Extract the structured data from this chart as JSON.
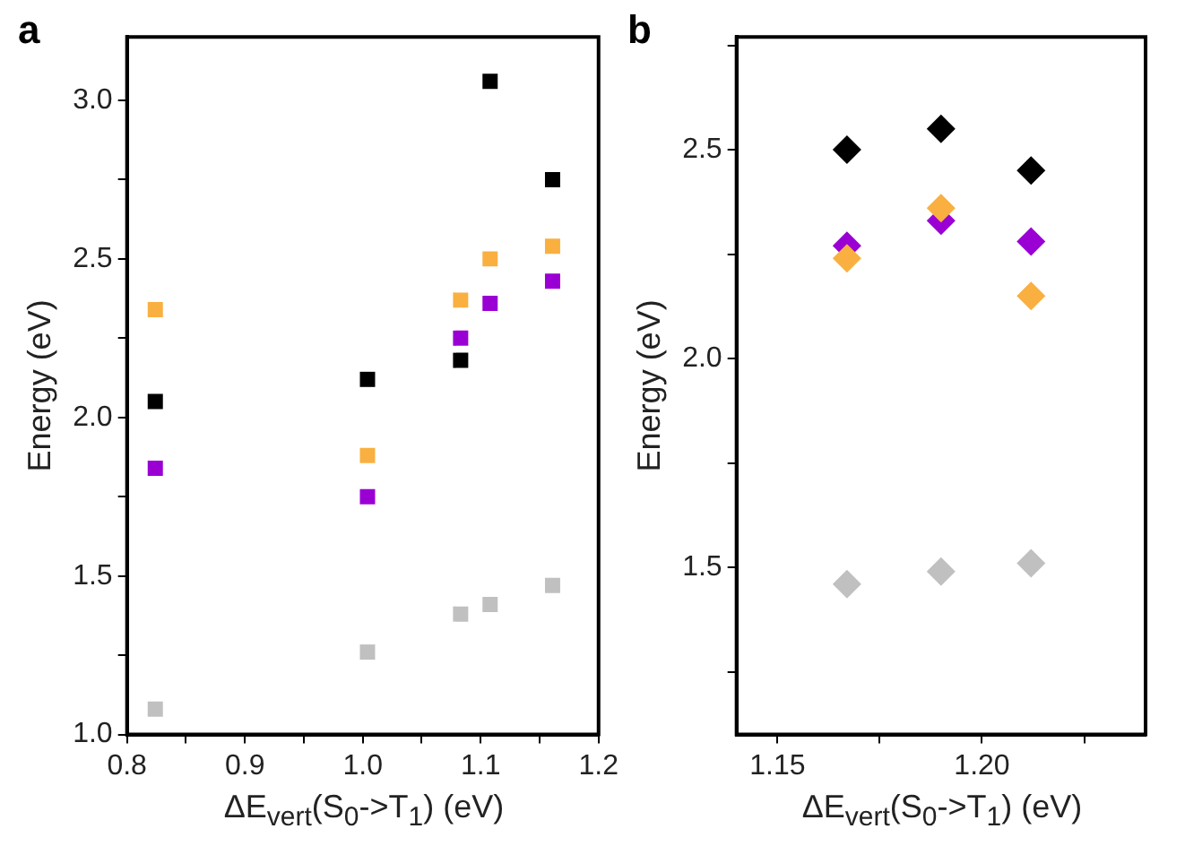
{
  "chart_data": [
    {
      "type": "scatter",
      "title": "a",
      "xlabel": "ΔE$_{vert}$(S$_{0}$->T$_{1}$) (eV)",
      "ylabel": "Energy (eV)",
      "marker": "square",
      "grid": false,
      "legend": false,
      "x": [
        0.824,
        1.004,
        1.083,
        1.108,
        1.161
      ],
      "xlim": [
        0.8,
        1.2
      ],
      "xticks": [
        {
          "value": 0.8,
          "label": "0.8"
        },
        {
          "value": 0.85,
          "label": null
        },
        {
          "value": 0.9,
          "label": "0.9"
        },
        {
          "value": 0.95,
          "label": null
        },
        {
          "value": 1,
          "label": "1.0"
        },
        {
          "value": 1.05,
          "label": null
        },
        {
          "value": 1.1,
          "label": "1.1"
        },
        {
          "value": 1.15,
          "label": null
        },
        {
          "value": 1.2,
          "label": "1.2"
        }
      ],
      "ylim": [
        1.0,
        3.2
      ],
      "yticks": [
        {
          "value": 1,
          "label": "1.0"
        },
        {
          "value": 1.25,
          "label": null
        },
        {
          "value": 1.5,
          "label": "1.5"
        },
        {
          "value": 1.75,
          "label": null
        },
        {
          "value": 2,
          "label": "2.0"
        },
        {
          "value": 2.25,
          "label": null
        },
        {
          "value": 2.5,
          "label": "2.5"
        },
        {
          "value": 2.75,
          "label": null
        },
        {
          "value": 3,
          "label": "3.0"
        }
      ],
      "series": [
        {
          "color": "#c0c0c0",
          "values": [
            1.08,
            1.26,
            1.38,
            1.41,
            1.47
          ]
        },
        {
          "color": "#9a00d4",
          "values": [
            1.84,
            1.75,
            2.25,
            2.36,
            2.43
          ]
        },
        {
          "color": "#f9b040",
          "values": [
            2.34,
            1.88,
            2.37,
            2.5,
            2.54
          ]
        },
        {
          "color": "#000000",
          "values": [
            2.05,
            2.12,
            2.18,
            3.06,
            2.75
          ]
        }
      ]
    },
    {
      "type": "scatter",
      "title": "b",
      "xlabel": "ΔE$_{vert}$(S$_{0}$->T$_{1}$) (eV)",
      "ylabel": "Energy (eV)",
      "marker": "diamond",
      "grid": false,
      "legend": false,
      "x": [
        1.167,
        1.19,
        1.212
      ],
      "xlim": [
        1.14,
        1.24
      ],
      "xticks": [
        {
          "value": 1.15,
          "label": "1.15"
        },
        {
          "value": 1.175,
          "label": null
        },
        {
          "value": 1.2,
          "label": "1.20"
        },
        {
          "value": 1.225,
          "label": null
        }
      ],
      "ylim": [
        1.1,
        2.77
      ],
      "yticks": [
        {
          "value": 1.25,
          "label": null
        },
        {
          "value": 1.5,
          "label": "1.5"
        },
        {
          "value": 1.75,
          "label": null
        },
        {
          "value": 2.0,
          "label": "2.0"
        },
        {
          "value": 2.25,
          "label": null
        },
        {
          "value": 2.5,
          "label": "2.5"
        },
        {
          "value": 2.75,
          "label": null
        }
      ],
      "series": [
        {
          "color": "#c0c0c0",
          "values": [
            1.46,
            1.49,
            1.51
          ]
        },
        {
          "color": "#f9b040",
          "values": [
            2.24,
            2.36,
            2.15
          ]
        },
        {
          "color": "#9a00d4",
          "values": [
            2.27,
            2.33,
            2.28
          ]
        },
        {
          "color": "#000000",
          "values": [
            2.5,
            2.55,
            2.45
          ]
        }
      ]
    }
  ]
}
